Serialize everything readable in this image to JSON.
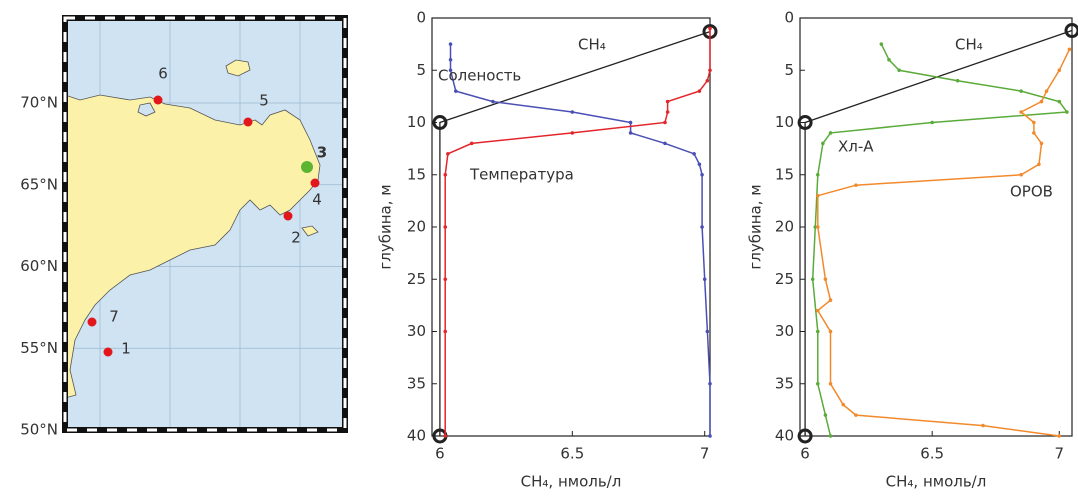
{
  "chart_data": [
    {
      "type": "map",
      "ylim": [
        50,
        75.2
      ],
      "yticks": [
        {
          "value": 50,
          "label": "50°N"
        },
        {
          "value": 55,
          "label": "55°N"
        },
        {
          "value": 60,
          "label": "60°N"
        },
        {
          "value": 65,
          "label": "65°N"
        },
        {
          "value": 70,
          "label": "70°N"
        }
      ],
      "stations": [
        {
          "label": "1",
          "color": "#e3161b"
        },
        {
          "label": "2",
          "color": "#e3161b"
        },
        {
          "label": "3",
          "color": "#5cb531"
        },
        {
          "label": "4",
          "color": "#e3161b"
        },
        {
          "label": "5",
          "color": "#e3161b"
        },
        {
          "label": "6",
          "color": "#e3161b"
        },
        {
          "label": "7",
          "color": "#e3161b"
        }
      ]
    },
    {
      "type": "profile",
      "xlabel": "CH₄, нмоль/л",
      "ylabel": "глубина, м",
      "y_inverted": true,
      "xlim": [
        5.97,
        7.02
      ],
      "xticks": [
        6,
        6.5,
        7
      ],
      "ylim": [
        0,
        40
      ],
      "yticks": [
        0,
        5,
        10,
        15,
        20,
        25,
        30,
        35,
        40
      ],
      "series": [
        {
          "name": "CH₄",
          "color": "#222222",
          "marker": "open-circle",
          "x": [
            6.0,
            6.0,
            7.02
          ],
          "y": [
            40,
            10,
            1.3
          ]
        },
        {
          "name": "Соленость",
          "color": "#4a4fb5",
          "marker": "dot",
          "x": [
            6.04,
            6.04,
            6.04,
            6.06,
            6.2,
            6.5,
            6.72,
            6.72,
            6.85,
            6.96,
            6.98,
            6.99,
            6.99,
            7.0,
            7.01,
            7.02,
            7.02
          ],
          "y": [
            2.5,
            4,
            5,
            7,
            8,
            9,
            10,
            11,
            12,
            13,
            14,
            15,
            20,
            25,
            30,
            35,
            40
          ]
        },
        {
          "name": "Температура",
          "color": "#e3262b",
          "marker": "dot",
          "x": [
            7.02,
            7.02,
            7.01,
            6.98,
            6.86,
            6.86,
            6.85,
            6.5,
            6.12,
            6.03,
            6.02,
            6.02,
            6.02,
            6.02,
            6.02
          ],
          "y": [
            1,
            5,
            6,
            7,
            8,
            9,
            10,
            11,
            12,
            13,
            15,
            20,
            25,
            30,
            40
          ]
        }
      ]
    },
    {
      "type": "profile",
      "xlabel": "CH₄, нмоль/л",
      "ylabel": "глубина, м",
      "y_inverted": true,
      "xlim": [
        5.98,
        7.05
      ],
      "xticks": [
        6,
        6.5,
        7
      ],
      "ylim": [
        0,
        40
      ],
      "yticks": [
        0,
        5,
        10,
        15,
        20,
        25,
        30,
        35,
        40
      ],
      "series": [
        {
          "name": "CH₄",
          "color": "#222222",
          "marker": "open-circle",
          "x": [
            6.0,
            6.0,
            7.05
          ],
          "y": [
            40,
            10,
            1.2
          ]
        },
        {
          "name": "Хл-А",
          "color": "#5aab3a",
          "marker": "dot",
          "x": [
            6.3,
            6.33,
            6.37,
            6.6,
            6.85,
            7.0,
            7.03,
            6.5,
            6.1,
            6.07,
            6.05,
            6.04,
            6.03,
            6.05,
            6.05,
            6.08,
            6.1
          ],
          "y": [
            2.5,
            4,
            5,
            6,
            7,
            8,
            9,
            10,
            11,
            12,
            15,
            20,
            25,
            30,
            35,
            38,
            40
          ]
        },
        {
          "name": "ОРОВ",
          "color": "#f28a2c",
          "marker": "dot",
          "x": [
            7.04,
            7.0,
            6.95,
            6.93,
            6.85,
            6.9,
            6.9,
            6.93,
            6.92,
            6.85,
            6.2,
            6.05,
            6.05,
            6.08,
            6.1,
            6.05,
            6.1,
            6.1,
            6.15,
            6.2,
            6.7,
            7.0
          ],
          "y": [
            3,
            5,
            7,
            8,
            9,
            10,
            11,
            12,
            14,
            15,
            16,
            17,
            20,
            25,
            27,
            28,
            30,
            35,
            37,
            38,
            39,
            40
          ]
        }
      ]
    }
  ]
}
